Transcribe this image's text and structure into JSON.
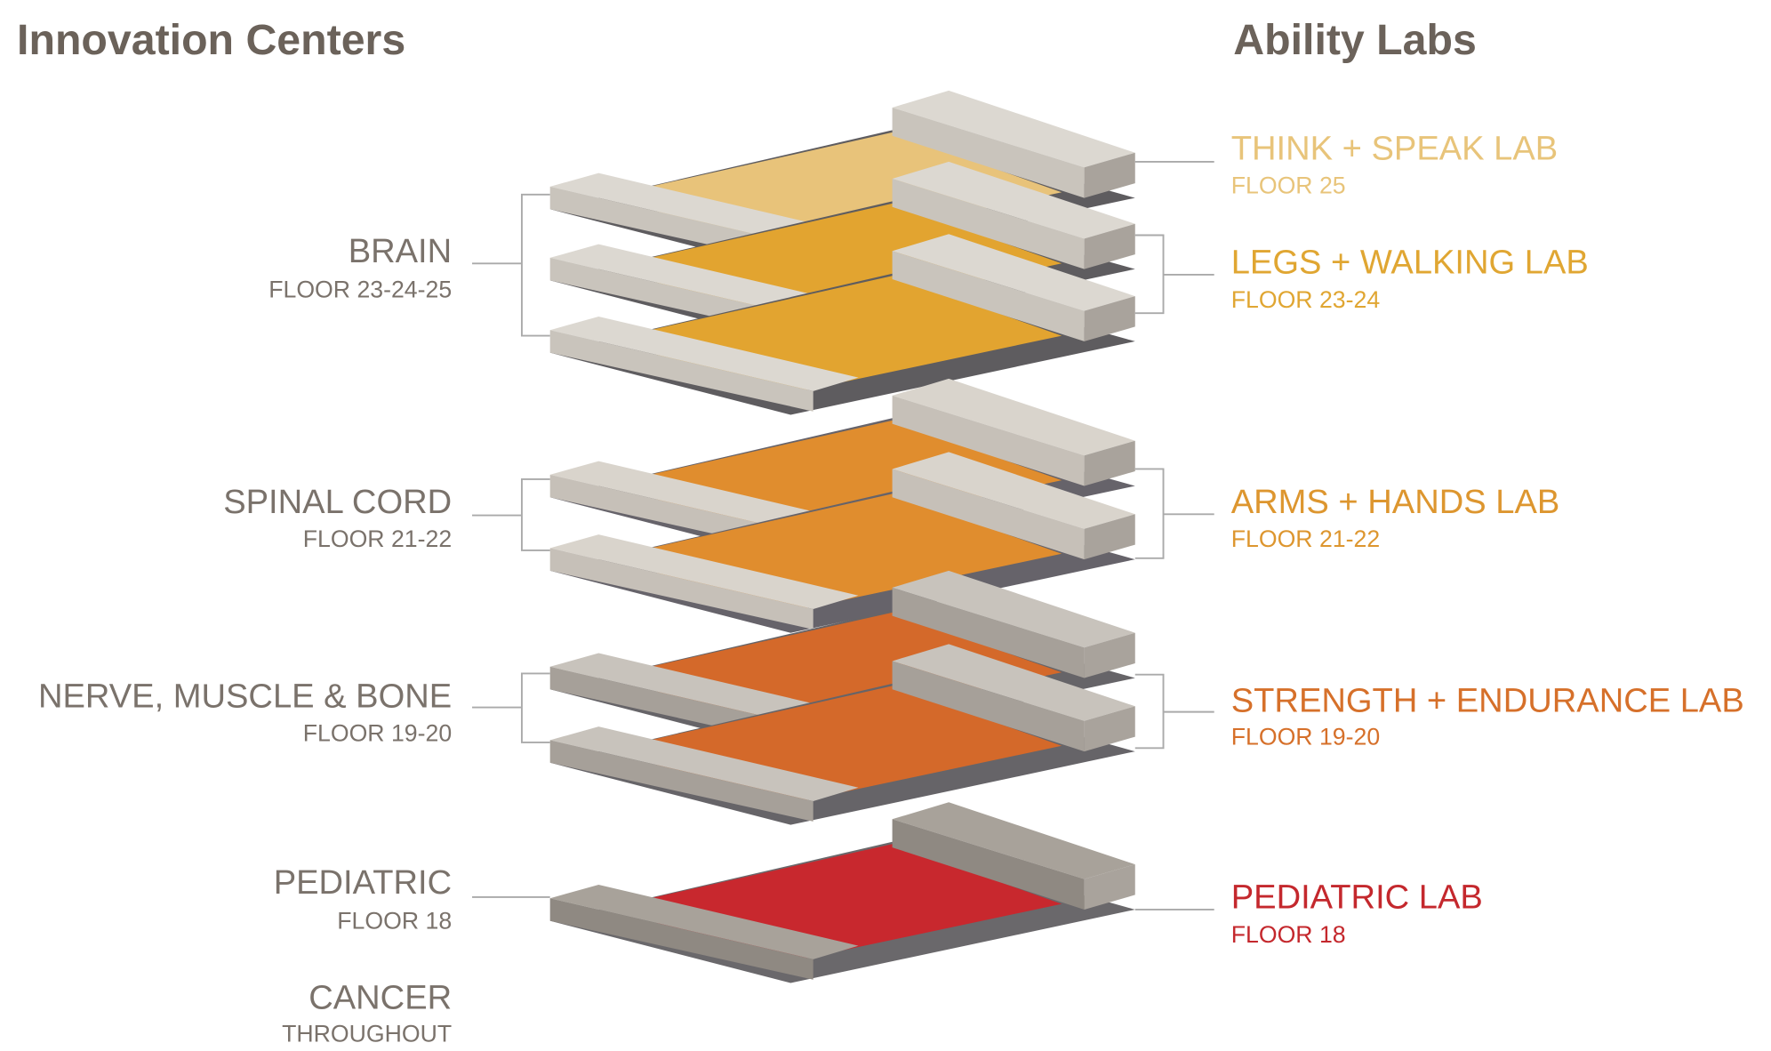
{
  "left": {
    "title": "Innovation Centers",
    "centers": [
      {
        "name": "BRAIN",
        "floor": "FLOOR 23-24-25"
      },
      {
        "name": "SPINAL CORD",
        "floor": "FLOOR 21-22"
      },
      {
        "name": "NERVE, MUSCLE & BONE",
        "floor": "FLOOR 19-20"
      },
      {
        "name": "PEDIATRIC",
        "floor": "FLOOR 18"
      },
      {
        "name": "CANCER",
        "floor": "THROUGHOUT"
      }
    ]
  },
  "right": {
    "title": "Ability Labs",
    "labs": [
      {
        "name": "THINK + SPEAK LAB",
        "floor": "FLOOR 25"
      },
      {
        "name": "LEGS + WALKING LAB",
        "floor": "FLOOR 23-24"
      },
      {
        "name": "ARMS + HANDS LAB",
        "floor": "FLOOR 21-22"
      },
      {
        "name": "STRENGTH + ENDURANCE LAB",
        "floor": "FLOOR 19-20"
      },
      {
        "name": "PEDIATRIC LAB",
        "floor": "FLOOR 18"
      }
    ]
  }
}
